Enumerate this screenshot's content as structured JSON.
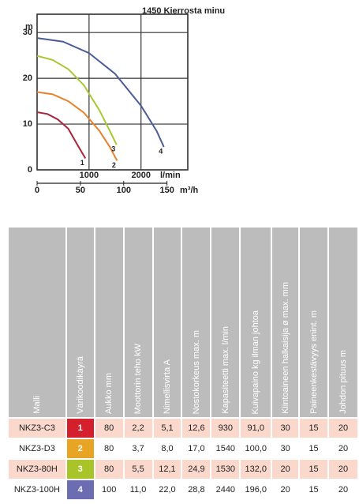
{
  "chart_data": {
    "type": "line",
    "title": "1450 Kierrosta minu",
    "ylabel": "m",
    "xlabel": "l/min",
    "x2label": "m³/h",
    "xlim": [
      0,
      2900
    ],
    "xticks": [
      1000,
      2000
    ],
    "x2lim": [
      0,
      174
    ],
    "x2ticks": [
      0,
      50,
      100,
      150
    ],
    "ylim": [
      0,
      34
    ],
    "yticks": [
      0,
      10,
      20,
      30
    ],
    "grid": true,
    "series": [
      {
        "name": "1",
        "color": "#a8243a",
        "x": [
          0,
          200,
          400,
          600,
          800,
          930
        ],
        "values": [
          12.6,
          12.2,
          11,
          9,
          5,
          2.5
        ]
      },
      {
        "name": "2",
        "color": "#e8822a",
        "x": [
          0,
          300,
          600,
          900,
          1200,
          1400,
          1540
        ],
        "values": [
          17,
          16.5,
          15,
          12.5,
          8.5,
          5,
          2
        ]
      },
      {
        "name": "3",
        "color": "#a8c832",
        "x": [
          0,
          300,
          600,
          900,
          1200,
          1400,
          1530
        ],
        "values": [
          24.9,
          24,
          22,
          18.5,
          13,
          8.5,
          5.5
        ]
      },
      {
        "name": "4",
        "color": "#4c5c98",
        "x": [
          0,
          500,
          1000,
          1500,
          2000,
          2300,
          2440
        ],
        "values": [
          28.8,
          28,
          25.5,
          21,
          14,
          8.5,
          5
        ]
      }
    ]
  },
  "table": {
    "headers": [
      "Malli",
      "Värikoodikäyrä",
      "Aukko mm",
      "Moottorin teho kW",
      "Nimellisvirta A",
      "Nostokorkeus max. m",
      "Kapasiteetti max. l/min",
      "Kuivapaino kg ilman johtoa",
      "Kiintoaineen halkaisija ø max. mm",
      "Paineenkestävyys enint. m",
      "Johdon pituus m"
    ],
    "rows": [
      [
        "NKZ3-C3",
        "1",
        "80",
        "2,2",
        "5,1",
        "12,6",
        "930",
        "91,0",
        "30",
        "15",
        "20"
      ],
      [
        "NKZ3-D3",
        "2",
        "80",
        "3,7",
        "8,0",
        "17,0",
        "1540",
        "100,0",
        "30",
        "15",
        "20"
      ],
      [
        "NKZ3-80H",
        "3",
        "80",
        "5,5",
        "12,1",
        "24,9",
        "1530",
        "132,0",
        "20",
        "15",
        "20"
      ],
      [
        "NKZ3-100H",
        "4",
        "100",
        "11,0",
        "22,0",
        "28,8",
        "2440",
        "196,0",
        "20",
        "15",
        "20"
      ]
    ],
    "code_colors": [
      "#d4202c",
      "#e8a424",
      "#a8c428",
      "#6c6cb0"
    ],
    "row_colors": [
      "#fad8cc",
      "#ffffff",
      "#fad8cc",
      "#ffffff"
    ]
  }
}
